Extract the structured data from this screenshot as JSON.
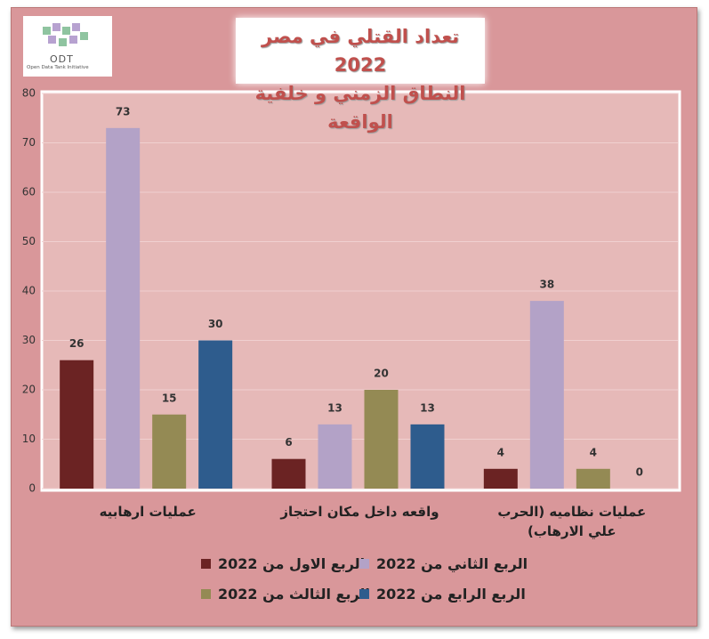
{
  "logo": {
    "text": "ODT",
    "subtext": "Open Data Tank Initiative"
  },
  "chart_data": {
    "type": "bar",
    "title": "تعداد القتلي في مصر 2022",
    "subtitle": "النطاق الزمني و خلفية الواقعة",
    "categories": [
      "عمليات ارهابيه",
      "واقعه داخل مكان احتجاز",
      "عمليات نظاميه (الحرب علي الارهاب)"
    ],
    "series": [
      {
        "name": "الربع الاول من 2022",
        "color": "#6b2323",
        "values": [
          26,
          6,
          4
        ]
      },
      {
        "name": "الربع الثاني من 2022",
        "color": "#b3a2c7",
        "values": [
          73,
          13,
          38
        ]
      },
      {
        "name": "الربع الثالث من 2022",
        "color": "#948a54",
        "values": [
          15,
          20,
          4
        ]
      },
      {
        "name": "الربع الرابع من 2022",
        "color": "#2e5c8d",
        "values": [
          30,
          13,
          0
        ]
      }
    ],
    "ylim": [
      0,
      80
    ],
    "yticks": [
      0,
      10,
      20,
      30,
      40,
      50,
      60,
      70,
      80
    ],
    "grid": true
  }
}
